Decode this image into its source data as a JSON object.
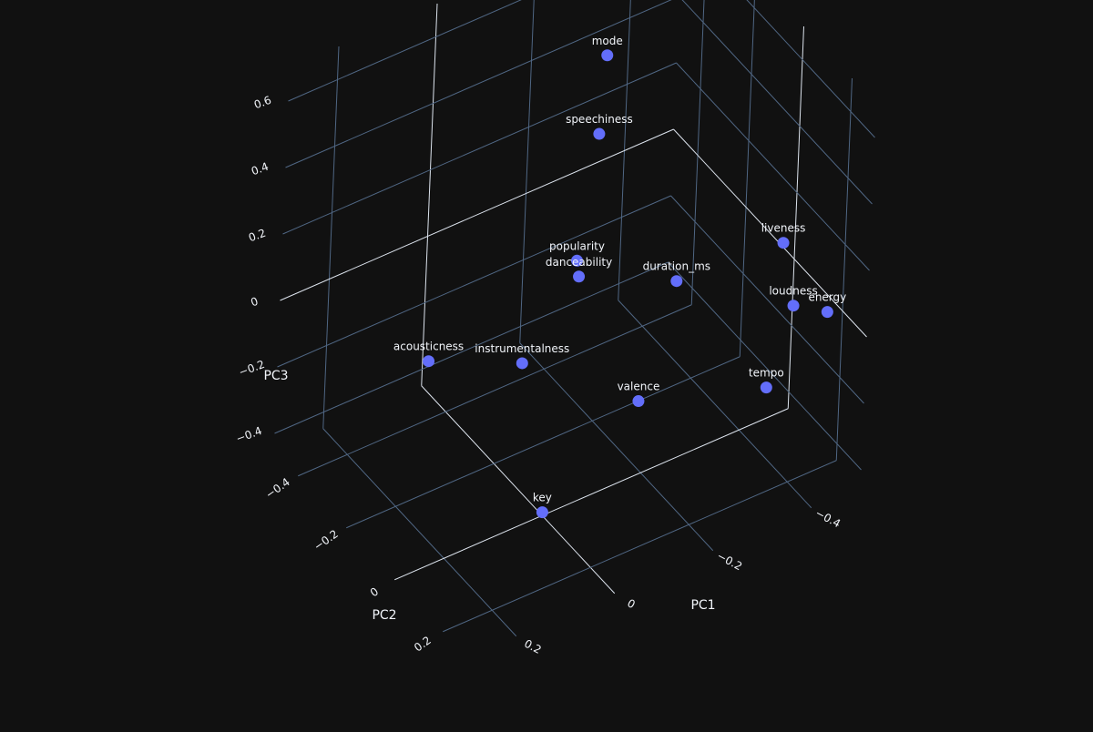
{
  "chart_data": {
    "type": "scatter3d",
    "title": "",
    "axes": {
      "x": {
        "title": "PC1",
        "range": [
          -0.5,
          0.3
        ],
        "ticks": [
          -0.4,
          -0.2,
          0,
          0.2
        ],
        "tick_labels": [
          "−0.4",
          "−0.2",
          "0",
          "0.2"
        ]
      },
      "y": {
        "title": "PC2",
        "range": [
          -0.5,
          0.3
        ],
        "ticks": [
          -0.4,
          -0.2,
          0,
          0.2
        ],
        "tick_labels": [
          "−0.4",
          "−0.2",
          "0",
          "0.2"
        ]
      },
      "z": {
        "title": "PC3",
        "range": [
          -0.45,
          0.7
        ],
        "ticks": [
          -0.4,
          -0.2,
          0,
          0.2,
          0.4,
          0.6
        ],
        "tick_labels": [
          "−0.4",
          "−0.2",
          "0",
          "0.2",
          "0.4",
          "0.6"
        ]
      }
    },
    "grid": true,
    "marker_color": "#636efa",
    "background": "#111111",
    "points": [
      {
        "label": "mode",
        "x": -0.2,
        "y": -0.2,
        "z": 0.65
      },
      {
        "label": "speechiness",
        "x": -0.19,
        "y": -0.2,
        "z": 0.42
      },
      {
        "label": "popularity",
        "x": -0.16,
        "y": -0.21,
        "z": 0.05
      },
      {
        "label": "danceability",
        "x": -0.16,
        "y": -0.2,
        "z": 0.01
      },
      {
        "label": "duration_ms",
        "x": -0.3,
        "y": -0.08,
        "z": 0.0
      },
      {
        "label": "liveness",
        "x": -0.45,
        "y": 0.05,
        "z": 0.12
      },
      {
        "label": "loudness",
        "x": -0.45,
        "y": 0.1,
        "z": -0.03
      },
      {
        "label": "energy",
        "x": -0.5,
        "y": 0.14,
        "z": -0.05
      },
      {
        "label": "tempo",
        "x": -0.38,
        "y": 0.14,
        "z": -0.2
      },
      {
        "label": "valence",
        "x": -0.2,
        "y": -0.02,
        "z": -0.25
      },
      {
        "label": "instrumentalness",
        "x": -0.05,
        "y": -0.2,
        "z": -0.18
      },
      {
        "label": "acousticness",
        "x": 0.05,
        "y": -0.38,
        "z": -0.25
      },
      {
        "label": "key",
        "x": 0.0,
        "y": 0.0,
        "z": -0.44
      }
    ]
  }
}
